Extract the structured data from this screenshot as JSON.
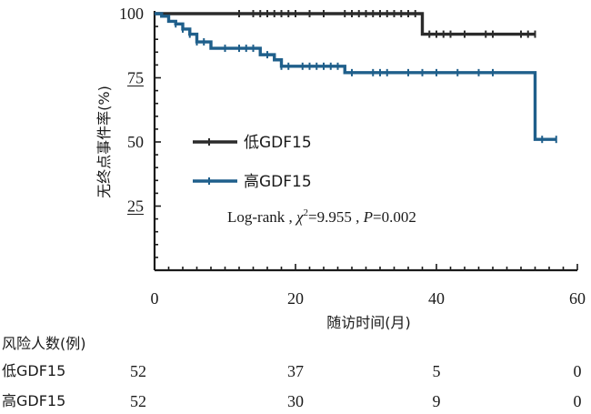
{
  "chart_data": {
    "type": "line",
    "ylabel": "无终点事件率(%)",
    "xlabel": "随访时间(月)",
    "xlim": [
      0,
      60
    ],
    "ylim": [
      0,
      100
    ],
    "xticks": [
      "0",
      "20",
      "40",
      "60"
    ],
    "yticks": [
      "25",
      "50",
      "75",
      "100"
    ],
    "legend_position": "center-left",
    "series": [
      {
        "name": "低GDF15",
        "color": "#2b2b2b",
        "step_x": [
          0,
          38,
          38,
          54
        ],
        "step_y": [
          100,
          100,
          92,
          92
        ],
        "censored_x": [
          12,
          14,
          15,
          16,
          17,
          18,
          19,
          20,
          22,
          24,
          27,
          28,
          29,
          30,
          31,
          32,
          33,
          34,
          35,
          36,
          37,
          39,
          40,
          41,
          42,
          44,
          47,
          48,
          52,
          53,
          54
        ],
        "censored_y": [
          100,
          100,
          100,
          100,
          100,
          100,
          100,
          100,
          100,
          100,
          100,
          100,
          100,
          100,
          100,
          100,
          100,
          100,
          100,
          100,
          100,
          92,
          92,
          92,
          92,
          92,
          92,
          92,
          92,
          92,
          92
        ]
      },
      {
        "name": "高GDF15",
        "color": "#1f5f8b",
        "step_x": [
          0,
          1,
          1,
          2,
          2,
          3,
          3,
          4,
          4,
          5,
          5,
          6,
          6,
          8,
          8,
          15,
          15,
          17,
          17,
          18,
          18,
          27,
          27,
          54,
          54,
          57
        ],
        "step_y": [
          100,
          100,
          99,
          99,
          97,
          97,
          96,
          96,
          94,
          94,
          92,
          92,
          89,
          89,
          86.5,
          86.5,
          84,
          84,
          82,
          82,
          79.5,
          79.5,
          77,
          77,
          51,
          51
        ],
        "censored_x": [
          3,
          4,
          5,
          6,
          7,
          10,
          12,
          13,
          14,
          16,
          18,
          19,
          21,
          22,
          23,
          24,
          25,
          26,
          28,
          31,
          32,
          33,
          36,
          38,
          40,
          43,
          46,
          48,
          55,
          57
        ],
        "censored_y": [
          96,
          94,
          92,
          89,
          89,
          86.5,
          86.5,
          86.5,
          86.5,
          84,
          79.5,
          79.5,
          79.5,
          79.5,
          79.5,
          79.5,
          79.5,
          79.5,
          77,
          77,
          77,
          77,
          77,
          77,
          77,
          77,
          77,
          77,
          51,
          51
        ]
      }
    ],
    "annotation": {
      "prefix": "Log-rank , ",
      "chi": "χ",
      "chi_sup": "2",
      "chi_val": "=9.955 , ",
      "p": "P",
      "p_val": "=0.002"
    }
  },
  "risk_table": {
    "title": "风险人数(例)",
    "rows": [
      {
        "label": "低GDF15",
        "values": [
          "52",
          "37",
          "5",
          "0"
        ]
      },
      {
        "label": "高GDF15",
        "values": [
          "52",
          "30",
          "9",
          "0"
        ]
      }
    ]
  }
}
